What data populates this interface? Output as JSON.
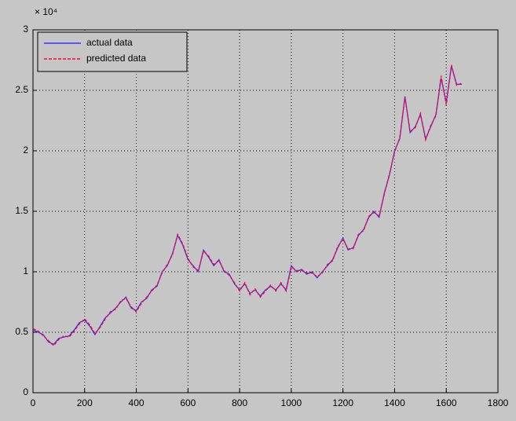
{
  "chart_data": {
    "type": "line",
    "y_scale_label": "× 10⁴",
    "x": [
      0,
      20,
      40,
      60,
      80,
      100,
      120,
      140,
      160,
      180,
      200,
      220,
      240,
      260,
      280,
      300,
      320,
      340,
      360,
      380,
      400,
      420,
      440,
      460,
      480,
      500,
      520,
      540,
      560,
      580,
      600,
      620,
      640,
      660,
      680,
      700,
      720,
      740,
      760,
      780,
      800,
      820,
      840,
      860,
      880,
      900,
      920,
      940,
      960,
      980,
      1000,
      1020,
      1040,
      1060,
      1080,
      1100,
      1120,
      1140,
      1160,
      1180,
      1200,
      1220,
      1240,
      1260,
      1280,
      1300,
      1320,
      1340,
      1360,
      1380,
      1400,
      1420,
      1440,
      1460,
      1480,
      1500,
      1520,
      1540,
      1560,
      1580,
      1600,
      1620,
      1640,
      1660
    ],
    "series": [
      {
        "name": "actual data",
        "color": "#3333ff",
        "dash": false,
        "values": [
          0.52,
          0.5,
          0.48,
          0.42,
          0.4,
          0.45,
          0.46,
          0.47,
          0.52,
          0.58,
          0.6,
          0.55,
          0.48,
          0.55,
          0.62,
          0.66,
          0.7,
          0.75,
          0.79,
          0.7,
          0.68,
          0.75,
          0.78,
          0.85,
          0.88,
          1.0,
          1.05,
          1.15,
          1.3,
          1.22,
          1.1,
          1.05,
          1.0,
          1.18,
          1.12,
          1.05,
          1.1,
          1.0,
          0.98,
          0.9,
          0.85,
          0.9,
          0.82,
          0.85,
          0.8,
          0.85,
          0.88,
          0.85,
          0.9,
          0.85,
          1.05,
          1.0,
          1.02,
          0.98,
          1.0,
          0.95,
          1.0,
          1.05,
          1.1,
          1.2,
          1.28,
          1.18,
          1.2,
          1.3,
          1.35,
          1.45,
          1.5,
          1.45,
          1.65,
          1.8,
          2.0,
          2.1,
          2.45,
          2.15,
          2.2,
          2.3,
          2.1,
          2.2,
          2.3,
          2.6,
          2.4,
          2.7,
          2.55,
          2.55
        ]
      },
      {
        "name": "predicted data",
        "color": "#ff0033",
        "dash": true,
        "values": [
          0.53,
          0.51,
          0.47,
          0.43,
          0.39,
          0.44,
          0.47,
          0.46,
          0.51,
          0.57,
          0.61,
          0.56,
          0.49,
          0.54,
          0.61,
          0.67,
          0.69,
          0.76,
          0.78,
          0.71,
          0.67,
          0.74,
          0.79,
          0.84,
          0.89,
          0.99,
          1.06,
          1.14,
          1.31,
          1.23,
          1.11,
          1.04,
          1.01,
          1.17,
          1.13,
          1.06,
          1.09,
          1.01,
          0.97,
          0.91,
          0.84,
          0.91,
          0.81,
          0.86,
          0.79,
          0.84,
          0.89,
          0.84,
          0.91,
          0.84,
          1.04,
          1.01,
          1.01,
          0.99,
          0.99,
          0.96,
          0.99,
          1.06,
          1.09,
          1.21,
          1.27,
          1.19,
          1.19,
          1.31,
          1.34,
          1.46,
          1.49,
          1.46,
          1.64,
          1.81,
          1.99,
          2.11,
          2.44,
          2.16,
          2.19,
          2.31,
          2.09,
          2.21,
          2.29,
          2.62,
          2.38,
          2.71,
          2.54,
          2.56
        ]
      }
    ],
    "xlim": [
      0,
      1800
    ],
    "xticks": [
      0,
      200,
      400,
      600,
      800,
      1000,
      1200,
      1400,
      1600,
      1800
    ],
    "ylim": [
      0,
      3
    ],
    "yticks": [
      0,
      0.5,
      1,
      1.5,
      2,
      2.5,
      3
    ],
    "grid": true,
    "legend": "top-left"
  }
}
